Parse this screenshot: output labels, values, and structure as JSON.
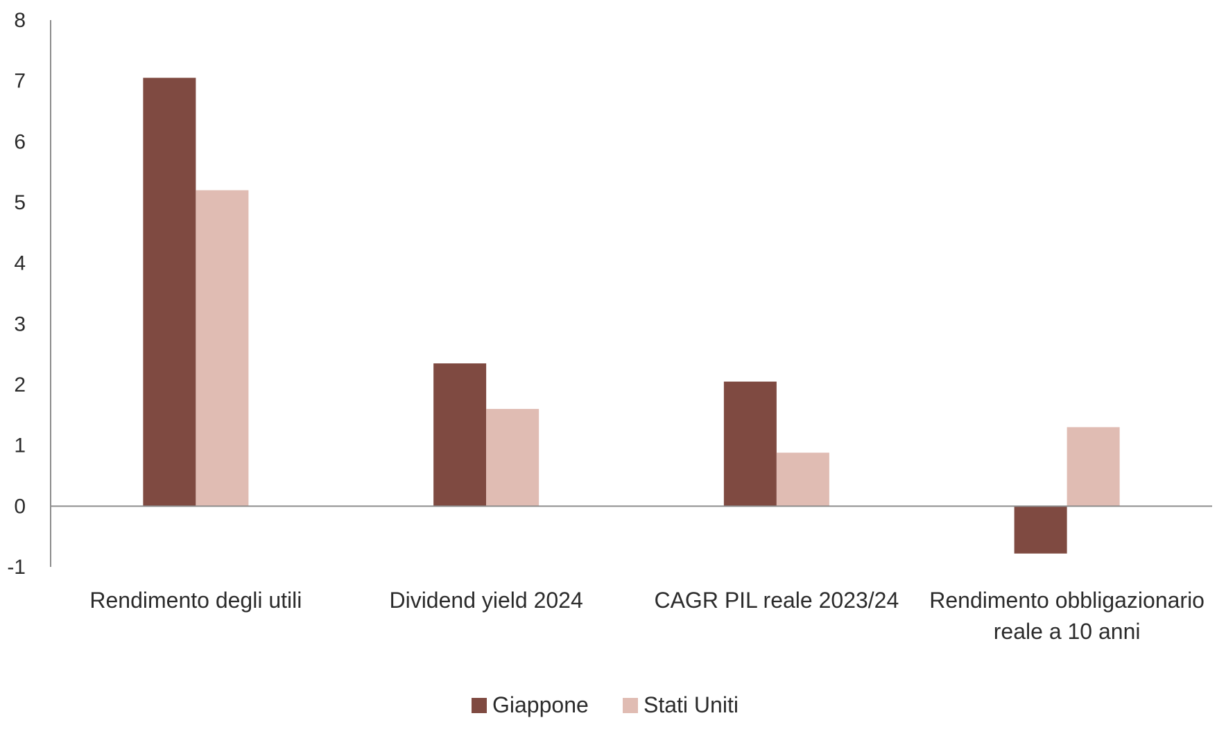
{
  "chart_data": {
    "type": "bar",
    "categories": [
      "Rendimento degli utili",
      "Dividend yield 2024",
      "CAGR PIL reale 2023/24",
      "Rendimento obbligazionario reale a 10 anni"
    ],
    "series": [
      {
        "name": "Giappone",
        "color": "#7f4a41",
        "values": [
          7.05,
          2.35,
          2.05,
          -0.78
        ]
      },
      {
        "name": "Stati Uniti",
        "color": "#e0bcb3",
        "values": [
          5.2,
          1.6,
          0.88,
          1.3
        ]
      }
    ],
    "ylim": [
      -1,
      8
    ],
    "yticks": [
      "8",
      "7",
      "6",
      "5",
      "4",
      "3",
      "2",
      "1",
      "0",
      "-1"
    ],
    "grid": false,
    "legend_position": "bottom"
  }
}
